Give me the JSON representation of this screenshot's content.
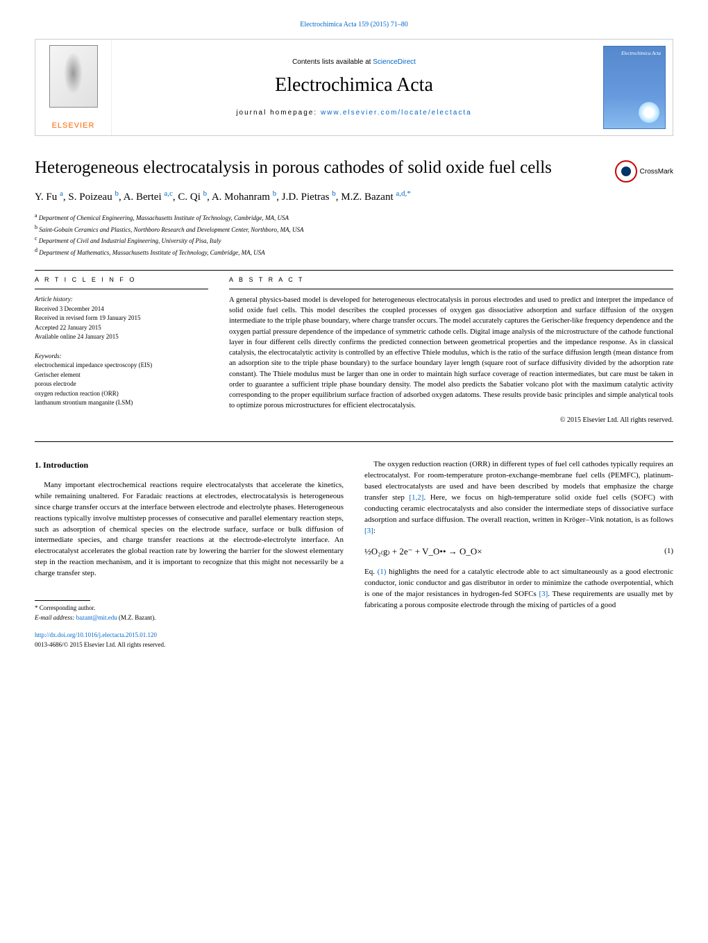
{
  "header_link": "Electrochimica Acta 159 (2015) 71–80",
  "banner": {
    "contents_prefix": "Contents lists available at ",
    "contents_link": "ScienceDirect",
    "journal": "Electrochimica Acta",
    "homepage_prefix": "journal homepage: ",
    "homepage_link": "www.elsevier.com/locate/electacta",
    "publisher": "ELSEVIER",
    "cover_title": "Electrochimica Acta"
  },
  "crossmark": "CrossMark",
  "title": "Heterogeneous electrocatalysis in porous cathodes of solid oxide fuel cells",
  "authors_html": "Y. Fu <sup>a</sup>, S. Poizeau <sup>b</sup>, A. Bertei <sup>a,c</sup>, C. Qi <sup>b</sup>, A. Mohanram <sup>b</sup>, J.D. Pietras <sup>b</sup>, M.Z. Bazant <sup>a,d,*</sup>",
  "affiliations": [
    {
      "sup": "a",
      "text": "Department of Chemical Engineering, Massachusetts Institute of Technology, Cambridge, MA, USA"
    },
    {
      "sup": "b",
      "text": "Saint-Gobain Ceramics and Plastics, Northboro Research and Development Center, Northboro, MA, USA"
    },
    {
      "sup": "c",
      "text": "Department of Civil and Industrial Engineering, University of Pisa, Italy"
    },
    {
      "sup": "d",
      "text": "Department of Mathematics, Massachusetts Institute of Technology, Cambridge, MA, USA"
    }
  ],
  "article_info": {
    "label": "A R T I C L E   I N F O",
    "history_label": "Article history:",
    "history": [
      "Received 3 December 2014",
      "Received in revised form 19 January 2015",
      "Accepted 22 January 2015",
      "Available online 24 January 2015"
    ],
    "keywords_label": "Keywords:",
    "keywords": [
      "electrochemical impedance spectroscopy (EIS)",
      "Gerischer element",
      "porous electrode",
      "oxygen reduction reaction (ORR)",
      "lanthanum strontium manganite (LSM)"
    ]
  },
  "abstract": {
    "label": "A B S T R A C T",
    "text": "A general physics-based model is developed for heterogeneous electrocatalysis in porous electrodes and used to predict and interpret the impedance of solid oxide fuel cells. This model describes the coupled processes of oxygen gas dissociative adsorption and surface diffusion of the oxygen intermediate to the triple phase boundary, where charge transfer occurs. The model accurately captures the Gerischer-like frequency dependence and the oxygen partial pressure dependence of the impedance of symmetric cathode cells. Digital image analysis of the microstructure of the cathode functional layer in four different cells directly confirms the predicted connection between geometrical properties and the impedance response. As in classical catalysis, the electrocatalytic activity is controlled by an effective Thiele modulus, which is the ratio of the surface diffusion length (mean distance from an adsorption site to the triple phase boundary) to the surface boundary layer length (square root of surface diffusivity divided by the adsorption rate constant). The Thiele modulus must be larger than one in order to maintain high surface coverage of reaction intermediates, but care must be taken in order to guarantee a sufficient triple phase boundary density. The model also predicts the Sabatier volcano plot with the maximum catalytic activity corresponding to the proper equilibrium surface fraction of adsorbed oxygen adatoms. These results provide basic principles and simple analytical tools to optimize porous microstructures for efficient electrocatalysis.",
    "copyright": "© 2015 Elsevier Ltd. All rights reserved."
  },
  "body": {
    "intro_heading": "1. Introduction",
    "left_p1": "Many important electrochemical reactions require electrocatalysts that accelerate the kinetics, while remaining unaltered. For Faradaic reactions at electrodes, electrocatalysis is heterogeneous since charge transfer occurs at the interface between electrode and electrolyte phases. Heterogeneous reactions typically involve multistep processes of consecutive and parallel elementary reaction steps, such as adsorption of chemical species on the electrode surface, surface or bulk diffusion of intermediate species, and charge transfer reactions at the electrode-electrolyte interface. An electrocatalyst accelerates the global reaction rate by lowering the barrier for the slowest elementary step in the reaction mechanism, and it is important to recognize that this might not necessarily be a charge transfer step.",
    "right_p1_a": "The oxygen reduction reaction (ORR) in different types of fuel cell cathodes typically requires an electrocatalyst. For room-temperature proton-exchange-membrane fuel cells (PEMFC), platinum-based electrocatalysts are used and have been described by models that emphasize the charge transfer step ",
    "right_p1_ref1": "[1,2]",
    "right_p1_b": ". Here, we focus on high-temperature solid oxide fuel cells (SOFC) with conducting ceramic electrocatalysts and also consider the intermediate steps of dissociative surface adsorption and surface diffusion. The overall reaction, written in Kröger–Vink notation, is as follows ",
    "right_p1_ref2": "[3]",
    "right_p1_c": ":",
    "equation": "½O₂₍g₎ + 2e⁻ + V_O•• → O_O×",
    "eq_num": "(1)",
    "right_p2_a": "Eq. ",
    "right_p2_ref1": "(1)",
    "right_p2_b": " highlights the need for a catalytic electrode able to act simultaneously as a good electronic conductor, ionic conductor and gas distributor in order to minimize the cathode overpotential, which is one of the major resistances in hydrogen-fed SOFCs ",
    "right_p2_ref2": "[3]",
    "right_p2_c": ". These requirements are usually met by fabricating a porous composite electrode through the mixing of particles of a good"
  },
  "footer": {
    "corresponding": "* Corresponding author.",
    "email_label": "E-mail address: ",
    "email": "bazant@mit.edu",
    "email_suffix": " (M.Z. Bazant).",
    "doi": "http://dx.doi.org/10.1016/j.electacta.2015.01.120",
    "issn": "0013-4686/© 2015 Elsevier Ltd. All rights reserved."
  },
  "colors": {
    "link": "#0066cc",
    "publisher": "#ff6600",
    "crossmark_ring": "#cc0000",
    "crossmark_dot": "#003366",
    "cover_bg": "#5588cc"
  }
}
